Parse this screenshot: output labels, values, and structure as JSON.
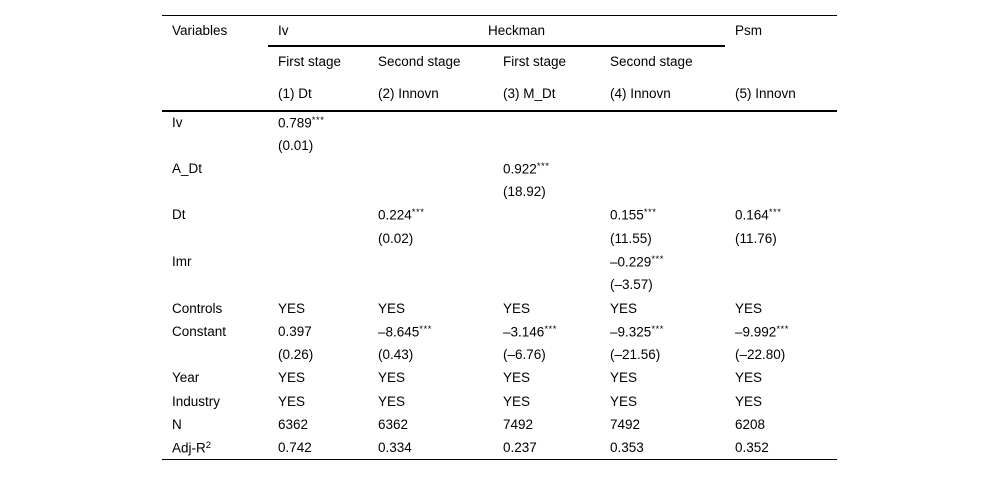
{
  "colors": {
    "background": "#ffffff",
    "text": "#000000",
    "rule": "#000000"
  },
  "table": {
    "header": {
      "variables_label": "Variables",
      "groups": [
        {
          "label": "Iv"
        },
        {
          "label": "Heckman"
        },
        {
          "label": "Psm"
        }
      ],
      "stage_labels": [
        "First stage",
        "Second stage",
        "First stage",
        "Second stage",
        ""
      ],
      "model_labels": [
        "(1) Dt",
        "(2) Innovn",
        "(3) M_Dt",
        "(4) Innovn",
        "(5) Innovn"
      ]
    },
    "rows": [
      {
        "label": "Iv",
        "cells": [
          {
            "v": "0.789",
            "s": "***"
          },
          "",
          "",
          "",
          ""
        ]
      },
      {
        "label": "",
        "cells": [
          "(0.01)",
          "",
          "",
          "",
          ""
        ]
      },
      {
        "label": "A_Dt",
        "cells": [
          "",
          "",
          {
            "v": "0.922",
            "s": "***"
          },
          "",
          ""
        ]
      },
      {
        "label": "",
        "cells": [
          "",
          "",
          "(18.92)",
          "",
          ""
        ]
      },
      {
        "label": "Dt",
        "cells": [
          "",
          {
            "v": "0.224",
            "s": "***"
          },
          "",
          {
            "v": "0.155",
            "s": "***"
          },
          {
            "v": "0.164",
            "s": "***"
          }
        ]
      },
      {
        "label": "",
        "cells": [
          "",
          "(0.02)",
          "",
          "(11.55)",
          "(11.76)"
        ]
      },
      {
        "label": "Imr",
        "cells": [
          "",
          "",
          "",
          {
            "v": "–0.229",
            "s": "***"
          },
          ""
        ]
      },
      {
        "label": "",
        "cells": [
          "",
          "",
          "",
          "(–3.57)",
          ""
        ]
      },
      {
        "label": "Controls",
        "cells": [
          "YES",
          "YES",
          "YES",
          "YES",
          "YES"
        ]
      },
      {
        "label": "Constant",
        "cells": [
          "0.397",
          {
            "v": "–8.645",
            "s": "***"
          },
          {
            "v": "–3.146",
            "s": "***"
          },
          {
            "v": "–9.325",
            "s": "***"
          },
          {
            "v": "–9.992",
            "s": "***"
          }
        ]
      },
      {
        "label": "",
        "cells": [
          "(0.26)",
          "(0.43)",
          "(–6.76)",
          "(–21.56)",
          "(–22.80)"
        ]
      },
      {
        "label": "Year",
        "cells": [
          "YES",
          "YES",
          "YES",
          "YES",
          "YES"
        ]
      },
      {
        "label": "Industry",
        "cells": [
          "YES",
          "YES",
          "YES",
          "YES",
          "YES"
        ]
      },
      {
        "label": "N",
        "cells": [
          "6362",
          "6362",
          "7492",
          "7492",
          "6208"
        ]
      },
      {
        "label": "Adj-R",
        "label_sup": "2",
        "cells": [
          "0.742",
          "0.334",
          "0.237",
          "0.353",
          "0.352"
        ]
      }
    ]
  }
}
